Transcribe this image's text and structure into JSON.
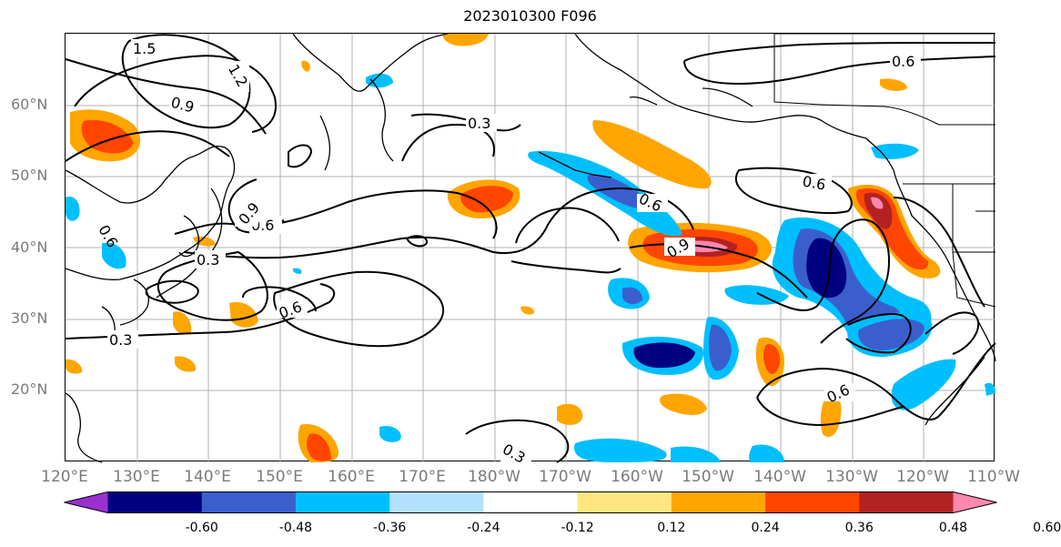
{
  "title": "2023010300 F096",
  "lat_labels": [
    "60°N",
    "50°N",
    "40°N",
    "30°N",
    "20°N"
  ],
  "lon_labels": [
    "120°E",
    "130°E",
    "140°E",
    "150°E",
    "160°E",
    "170°E",
    "180°W",
    "170°W",
    "160°W",
    "150°W",
    "140°W",
    "130°W",
    "120°W",
    "110°W"
  ],
  "contour_labels": [
    "1.5",
    "1.2",
    "0.9",
    "0.3",
    "0.6",
    "0.6",
    "0.6",
    "0.9",
    "0.6",
    "0.3",
    "0.6",
    "0.3",
    "0.6",
    "0.6",
    "0.3",
    "0.9"
  ],
  "colorbar": {
    "colors": [
      "#9b30d0",
      "#000080",
      "#3a5fcd",
      "#00bfff",
      "#b0e2ff",
      "#ffffff",
      "#ffe680",
      "#ffa500",
      "#ff4500",
      "#b22222",
      "#ff88b0"
    ],
    "tick_labels": [
      "-0.60",
      "-0.48",
      "-0.36",
      "-0.24",
      "-0.12",
      "0.12",
      "0.24",
      "0.36",
      "0.48",
      "0.60"
    ]
  }
}
